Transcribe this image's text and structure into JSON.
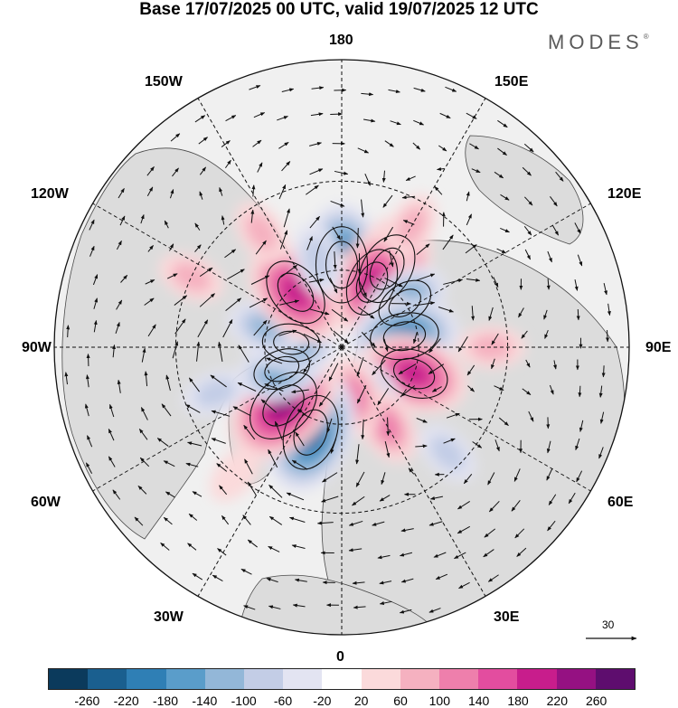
{
  "title": "Base 17/07/2025 00 UTC, valid 19/07/2025 12 UTC",
  "brand": "MODES",
  "brand_mark": "®",
  "map_labels": {
    "lon_180": "180",
    "lon_150W": "150W",
    "lon_150E": "150E",
    "lon_120W": "120W",
    "lon_120E": "120E",
    "lon_90W": "90W",
    "lon_90E": "90E",
    "lon_60W": "60W",
    "lon_60E": "60E",
    "lon_30W": "30W",
    "lon_30E": "30E",
    "lon_0": "0"
  },
  "reference_vector": {
    "label": "30"
  },
  "colorbar": {
    "ticks": [
      "-260",
      "-220",
      "-180",
      "-140",
      "-100",
      "-60",
      "-20",
      "20",
      "60",
      "100",
      "140",
      "180",
      "220",
      "260"
    ],
    "colors": [
      "#0b3a5c",
      "#1a5f8f",
      "#2f7fb5",
      "#5a9dca",
      "#93b7d8",
      "#c3cde6",
      "#e3e4f2",
      "#ffffff",
      "#fbdadb",
      "#f5b1c0",
      "#ee7fac",
      "#e34d9f",
      "#c81d8c",
      "#951182",
      "#5e0d6e"
    ]
  },
  "map_style": {
    "land_color": "#dcdcdc",
    "ocean_color": "#f0f0f0",
    "projection": "north polar stereographic",
    "field": "anomaly (shaded) with wind vectors"
  },
  "anomalies": [
    {
      "lon": 180,
      "lat": 58,
      "value": -240
    },
    {
      "lon": 150,
      "lat": 55,
      "value": 220
    },
    {
      "lon": 155,
      "lat": 62,
      "value": 200
    },
    {
      "lon": 125,
      "lat": 60,
      "value": -140
    },
    {
      "lon": 120,
      "lat": 70,
      "value": 60
    },
    {
      "lon": 100,
      "lat": 65,
      "value": -200
    },
    {
      "lon": 70,
      "lat": 60,
      "value": 200
    },
    {
      "lon": 30,
      "lat": 66,
      "value": -120
    },
    {
      "lon": 30,
      "lat": 55,
      "value": 100
    },
    {
      "lon": 15,
      "lat": 70,
      "value": 100
    },
    {
      "lon": -20,
      "lat": 55,
      "value": -240
    },
    {
      "lon": -45,
      "lat": 58,
      "value": 250
    },
    {
      "lon": -70,
      "lat": 65,
      "value": -140
    },
    {
      "lon": -95,
      "lat": 70,
      "value": -140
    },
    {
      "lon": -105,
      "lat": 60,
      "value": -100
    },
    {
      "lon": -140,
      "lat": 62,
      "value": 210
    },
    {
      "lon": -165,
      "lat": 55,
      "value": -80
    },
    {
      "lon": -145,
      "lat": 38,
      "value": 60
    },
    {
      "lon": -115,
      "lat": 30,
      "value": 60
    },
    {
      "lon": 90,
      "lat": 35,
      "value": 60
    },
    {
      "lon": 150,
      "lat": 38,
      "value": 60
    },
    {
      "lon": -70,
      "lat": 40,
      "value": -60
    },
    {
      "lon": -40,
      "lat": 30,
      "value": 40
    },
    {
      "lon": 45,
      "lat": 35,
      "value": -60
    }
  ]
}
